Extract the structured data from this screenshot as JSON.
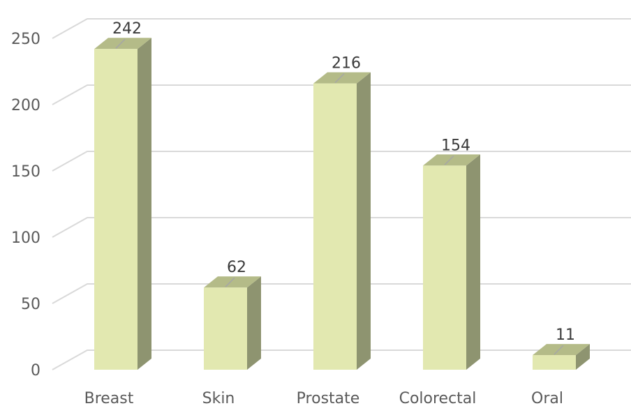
{
  "chart_data": {
    "type": "bar",
    "style": "3d-column",
    "categories": [
      "Breast",
      "Skin",
      "Prostate",
      "Colorectal",
      "Oral"
    ],
    "values": [
      242,
      62,
      216,
      154,
      11
    ],
    "data_labels": [
      "242",
      "62",
      "216",
      "154",
      "11"
    ],
    "title": "",
    "xlabel": "",
    "ylabel": "",
    "ylim": [
      0,
      250
    ],
    "yticks": [
      0,
      50,
      100,
      150,
      200,
      250
    ],
    "ytick_labels": [
      "0",
      "50",
      "100",
      "150",
      "200",
      "250"
    ],
    "grid": true,
    "legend": "none",
    "colors": {
      "bar_front": "#e2e8b0",
      "bar_side": "#8e9470",
      "bar_top": "#b4bb88",
      "grid": "#d9d9d9",
      "label_line": "#a6a6a6"
    }
  }
}
